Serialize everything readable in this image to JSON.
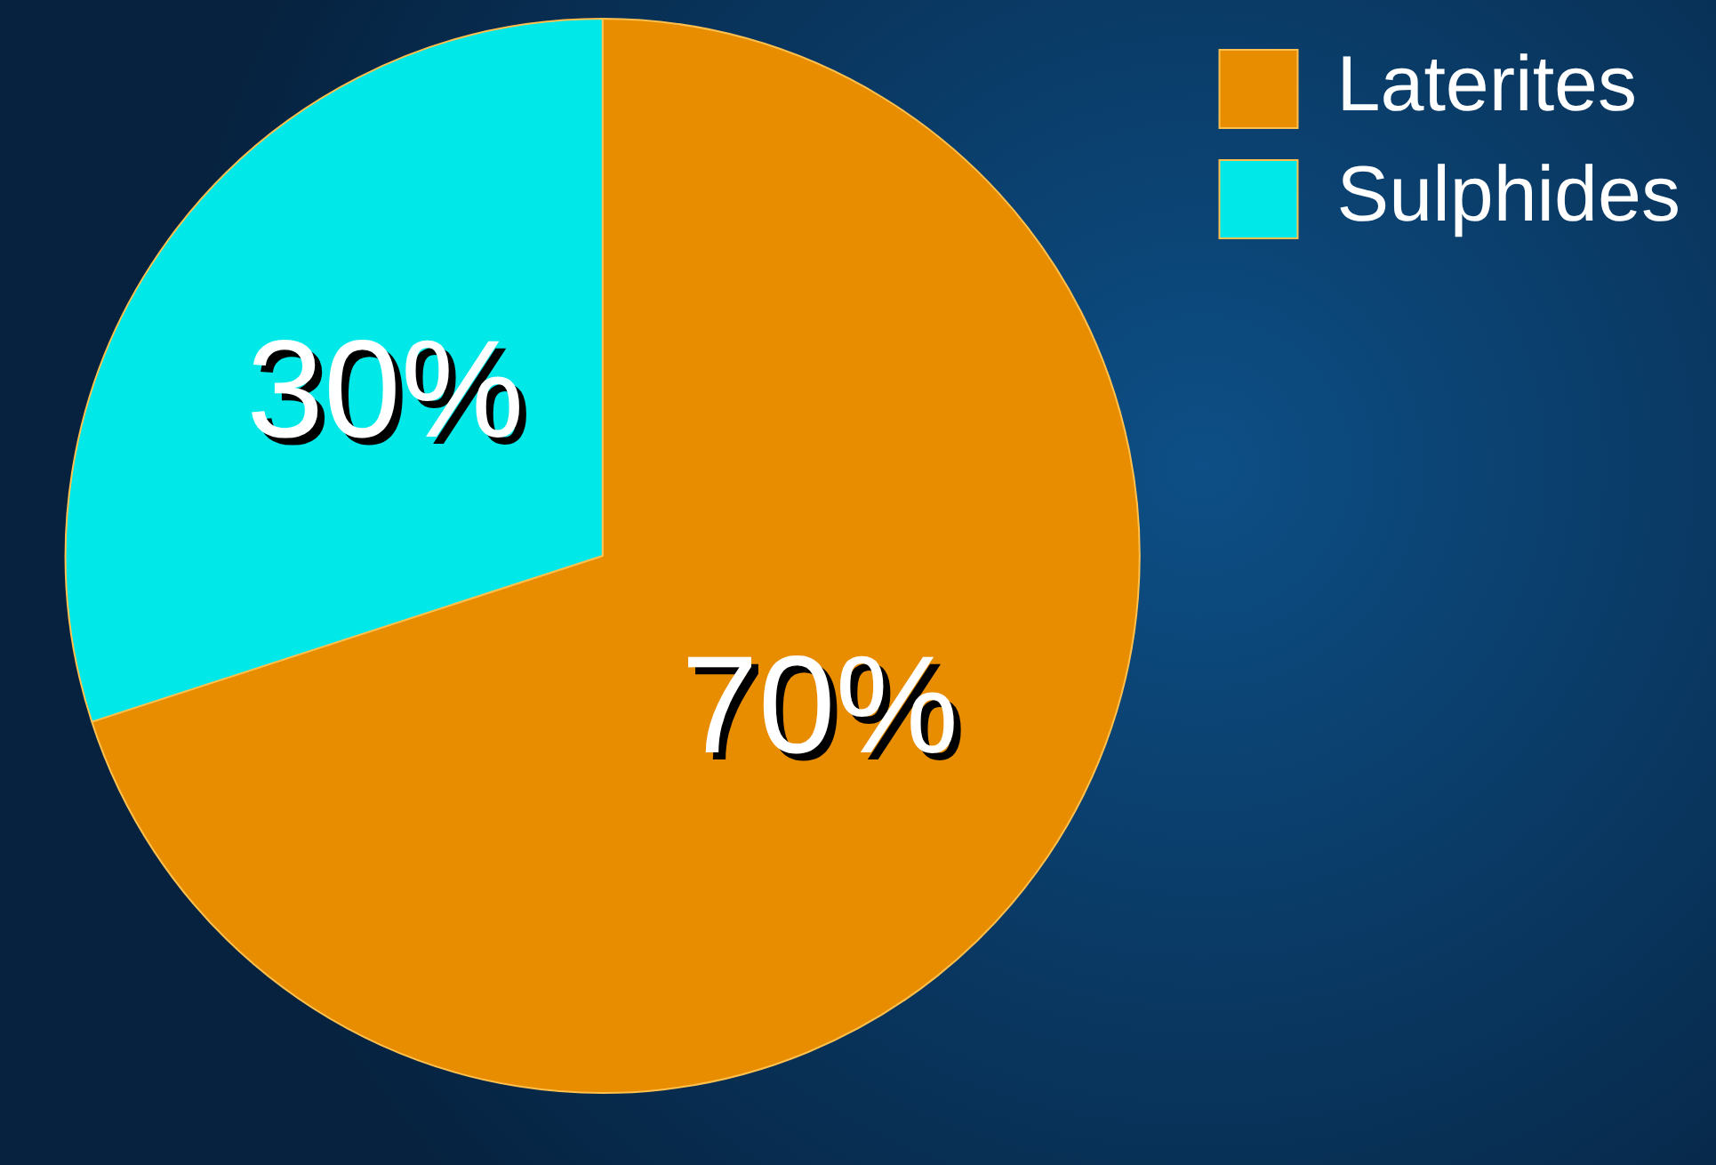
{
  "chart_data": {
    "type": "pie",
    "categories": [
      "Laterites",
      "Sulphides"
    ],
    "values": [
      70,
      30
    ],
    "colors": [
      "#e88c00",
      "#00e8e8"
    ],
    "value_labels": [
      "70%",
      "30%"
    ],
    "legend": "top right"
  }
}
